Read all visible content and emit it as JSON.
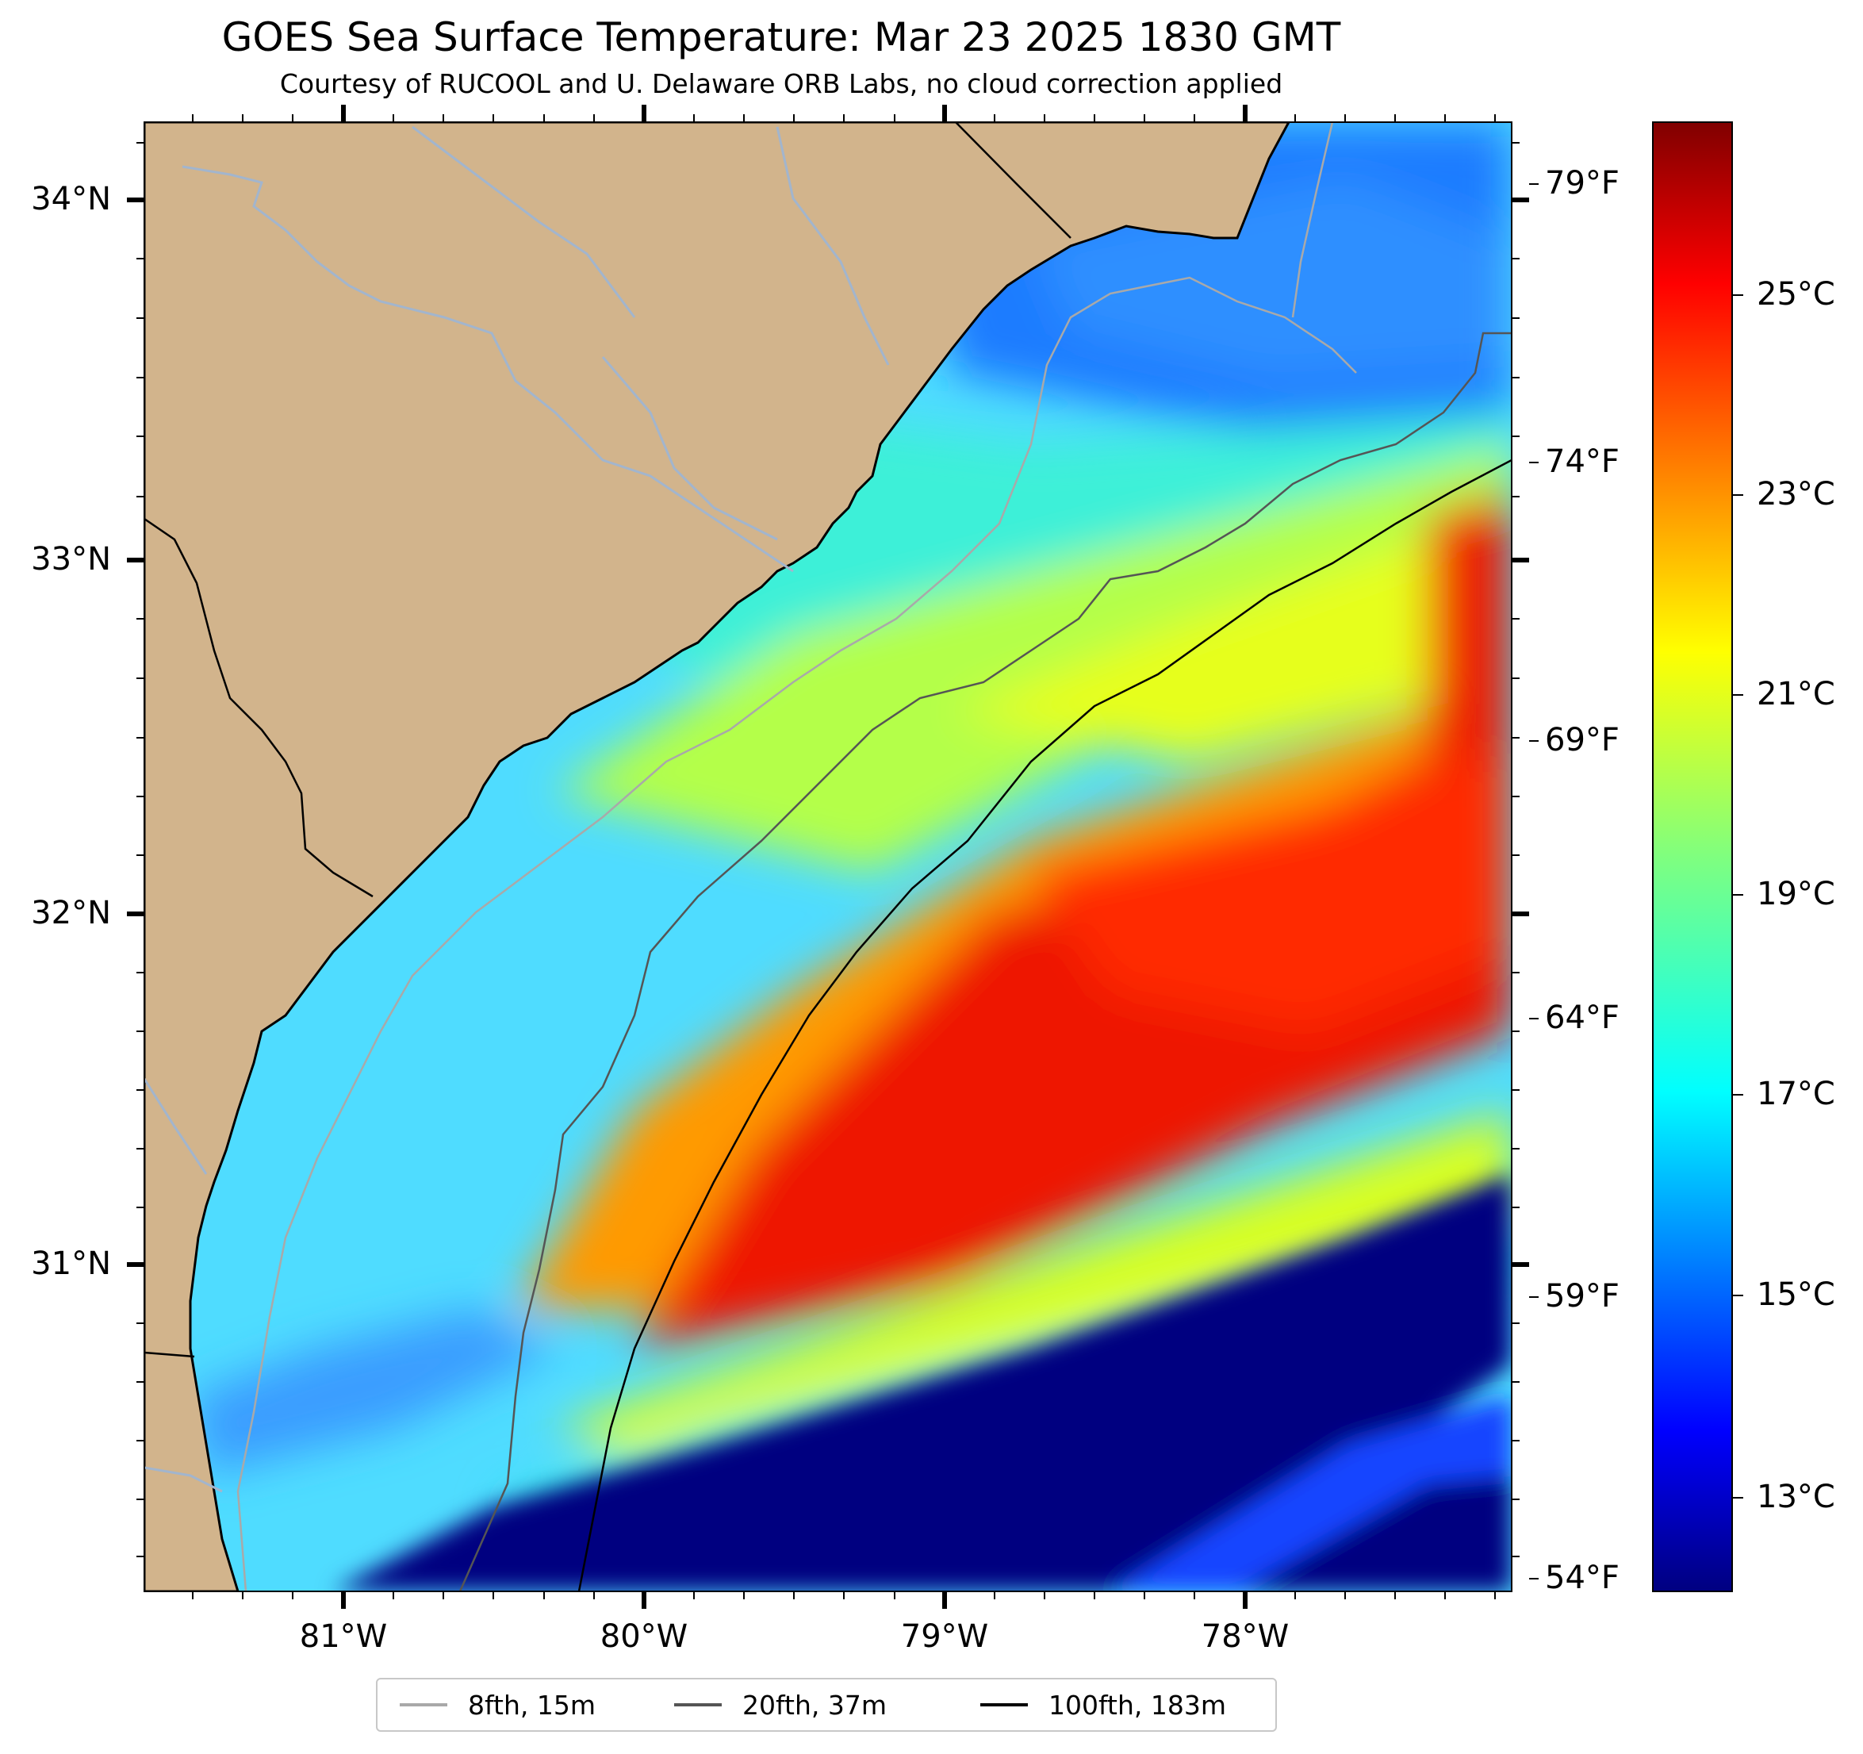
{
  "title": "GOES Sea Surface Temperature: Mar 23 2025 1830 GMT",
  "subtitle": "Courtesy of RUCOOL and U. Delaware ORB Labs, no cloud correction applied",
  "map": {
    "lat_ticks": [
      "34°N",
      "33°N",
      "32°N",
      "31°N"
    ],
    "lon_ticks": [
      "81°W",
      "80°W",
      "79°W",
      "78°W"
    ],
    "fahrenheit_ticks": [
      "79°F",
      "74°F",
      "69°F",
      "64°F",
      "59°F",
      "54°F"
    ],
    "colors": {
      "land": "#d2b48c",
      "river": "#a2b5cd",
      "coast": "#000000"
    }
  },
  "colorbar": {
    "celsius_ticks": [
      "25°C",
      "23°C",
      "21°C",
      "19°C",
      "17°C",
      "15°C",
      "13°C"
    ],
    "colormap": "jet"
  },
  "legend": {
    "items": [
      {
        "label": "8fth, 15m",
        "color": "#a9a9a9"
      },
      {
        "label": "20fth, 37m",
        "color": "#555555"
      },
      {
        "label": "100fth, 183m",
        "color": "#000000"
      }
    ]
  }
}
